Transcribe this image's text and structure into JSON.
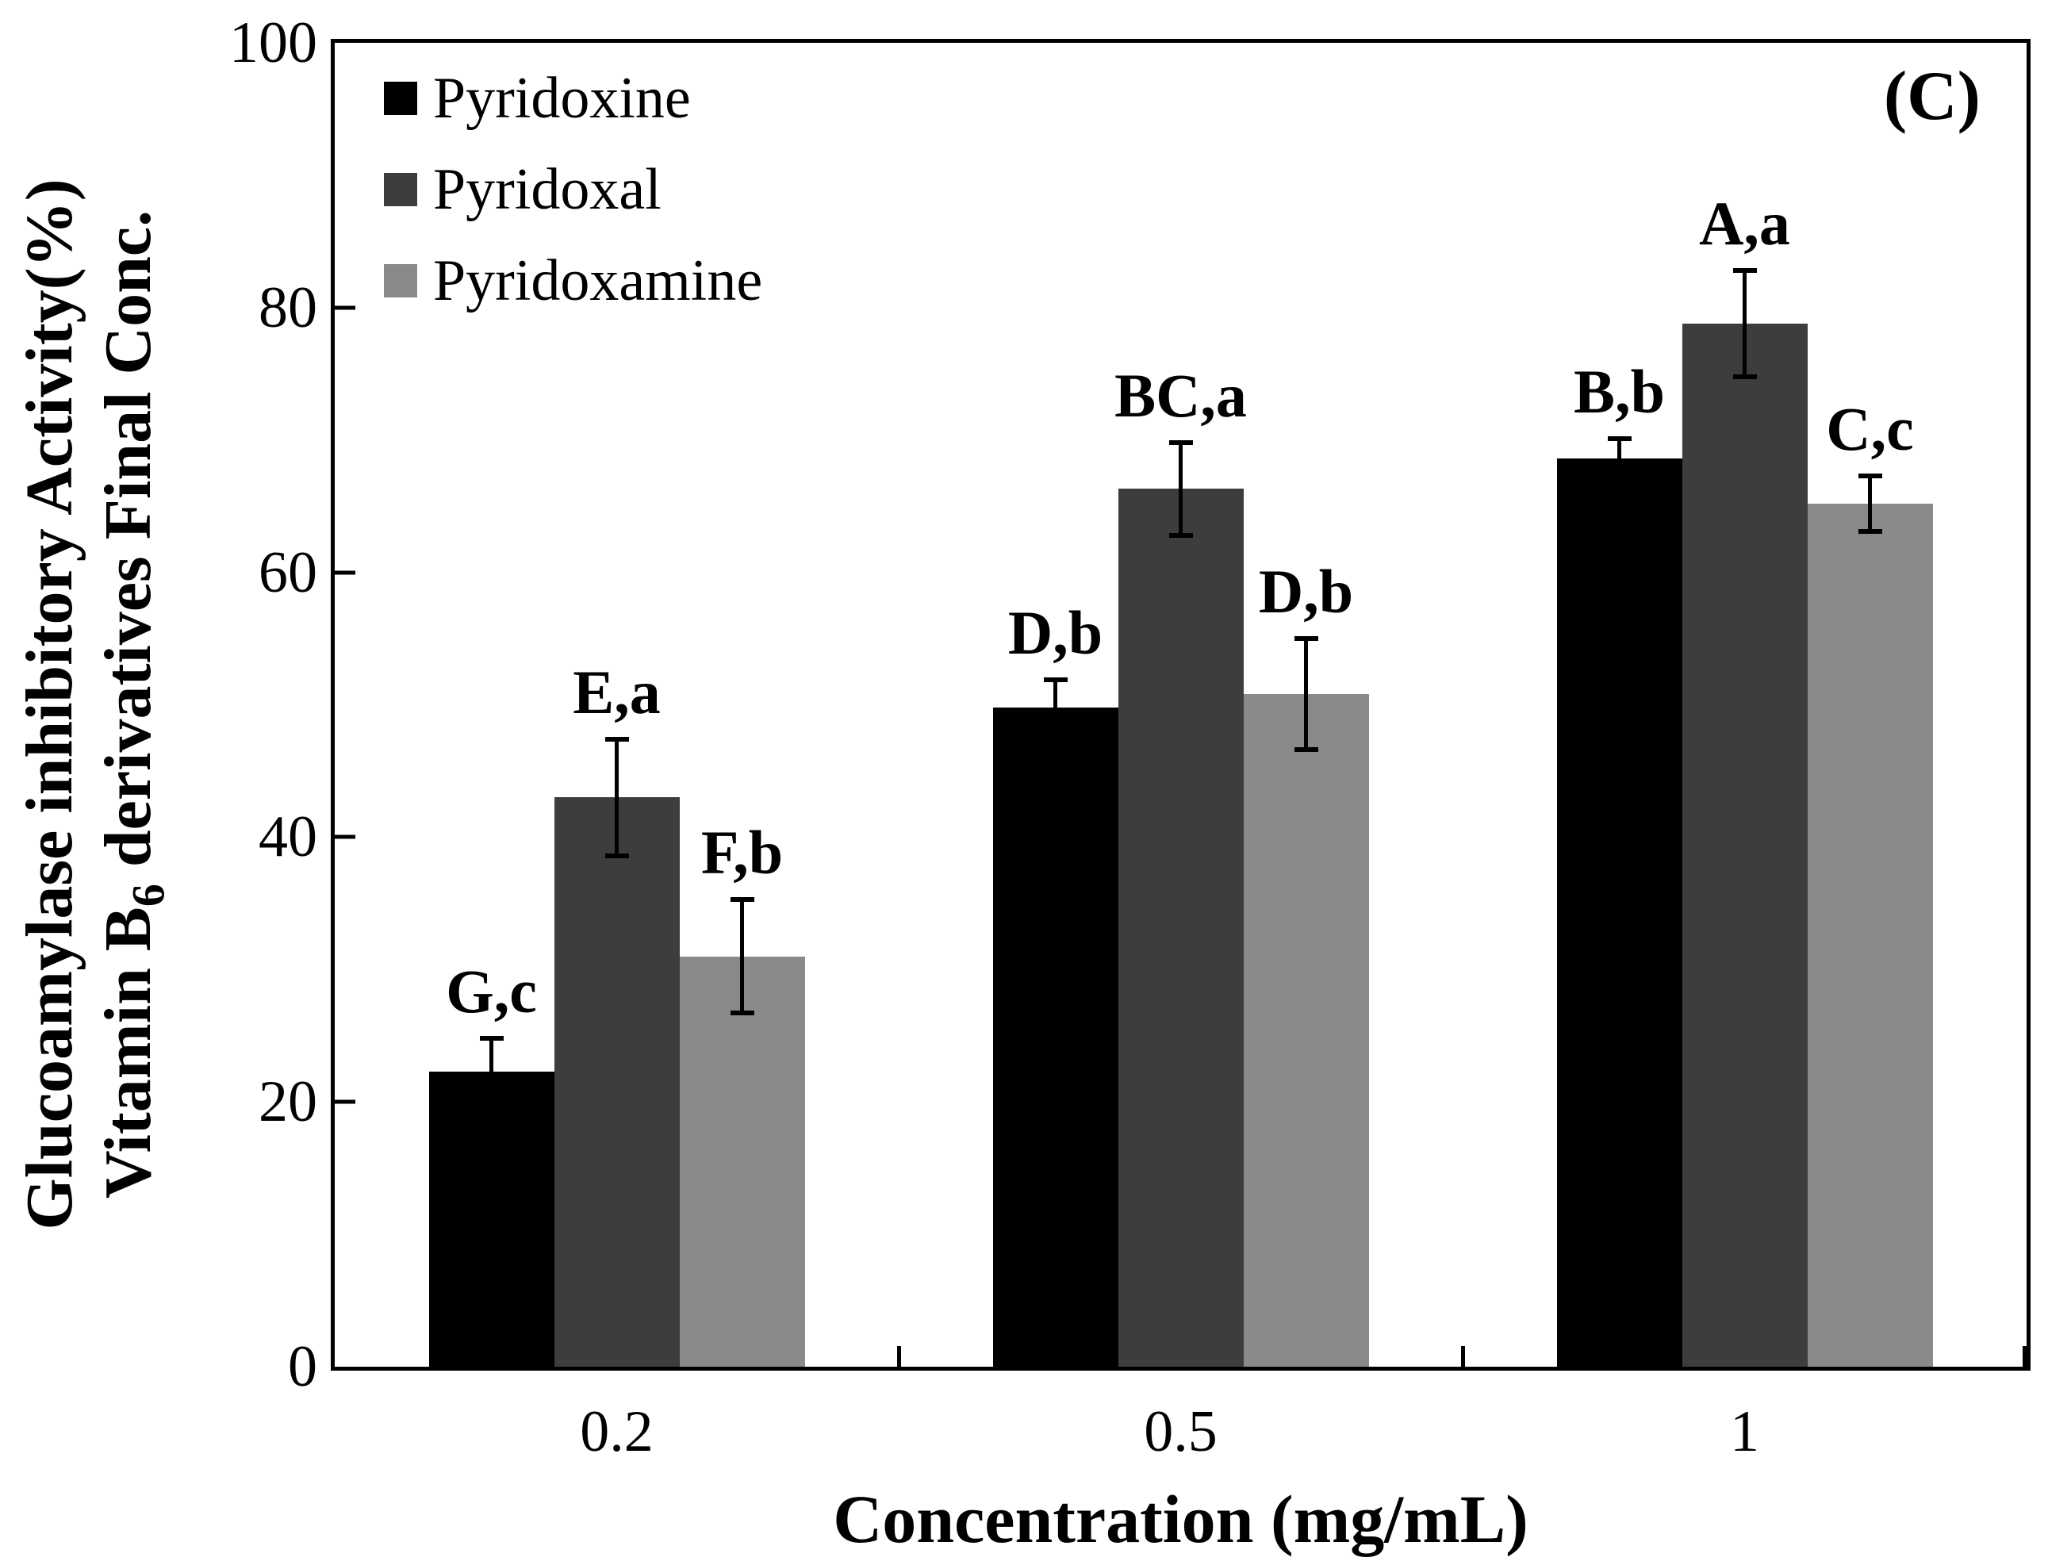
{
  "panel_label": "(C)",
  "y_axis": {
    "title_line1": "Glucoamylase inhibitory Activity(%)",
    "title_line2_prefix": "Vitamin B",
    "title_line2_sub": "6",
    "title_line2_suffix": " derivatives Final Conc.",
    "min": 0,
    "max": 100,
    "tick_step": 20,
    "tick_labels": [
      "0",
      "20",
      "40",
      "60",
      "80",
      "100"
    ]
  },
  "x_axis": {
    "title": "Concentration (mg/mL)",
    "tick_labels": [
      "0.2",
      "0.5",
      "1"
    ]
  },
  "legend": {
    "position": "upper-left",
    "items": [
      "Pyridoxine",
      "Pyridoxal",
      "Pyridoxamine"
    ]
  },
  "chart_data": {
    "type": "bar",
    "title": "",
    "xlabel": "Concentration (mg/mL)",
    "ylabel": "Glucoamylase inhibitory Activity(%) Vitamin B6 derivatives Final Conc.",
    "categories": [
      "0.2",
      "0.5",
      "1"
    ],
    "ylim": [
      0,
      100
    ],
    "grid": false,
    "legend_position": "upper-left",
    "series": [
      {
        "name": "Pyridoxine",
        "color": "#000000",
        "values": [
          22.3,
          49.8,
          68.6
        ],
        "errors": [
          2.5,
          2.1,
          1.5
        ],
        "annotations": [
          "G,c",
          "D,b",
          "B,b"
        ]
      },
      {
        "name": "Pyridoxal",
        "color": "#3d3d3d",
        "values": [
          43.0,
          66.3,
          78.8
        ],
        "errors": [
          4.4,
          3.5,
          4.0
        ],
        "annotations": [
          "E,a",
          "BC,a",
          "A,a"
        ]
      },
      {
        "name": "Pyridoxamine",
        "color": "#8a8a8a",
        "values": [
          31.0,
          50.8,
          65.2
        ],
        "errors": [
          4.3,
          4.2,
          2.1
        ],
        "annotations": [
          "F,b",
          "D,b",
          "C,c"
        ]
      }
    ]
  }
}
